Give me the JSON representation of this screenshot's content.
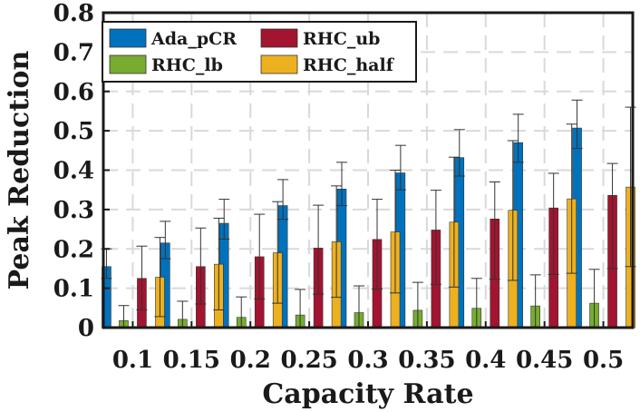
{
  "chart_data": {
    "type": "bar",
    "title": "",
    "xlabel": "Capacity Rate",
    "ylabel": "Peak Reduction",
    "ylim": [
      0,
      0.8
    ],
    "yticks": [
      "0",
      "0.1",
      "0.2",
      "0.3",
      "0.4",
      "0.5",
      "0.6",
      "0.7",
      "0.8"
    ],
    "categories": [
      "0.1",
      "0.15",
      "0.2",
      "0.25",
      "0.3",
      "0.35",
      "0.4",
      "0.45",
      "0.5"
    ],
    "grid": true,
    "legend_position": "top-left",
    "series": [
      {
        "name": "Ada_pCR",
        "color": "#0072BD",
        "values": [
          0.155,
          0.215,
          0.265,
          0.31,
          0.352,
          0.393,
          0.432,
          0.47,
          0.507
        ],
        "err_low": [
          0.125,
          0.175,
          0.225,
          0.275,
          0.31,
          0.35,
          0.385,
          0.42,
          0.455
        ],
        "err_high": [
          0.2,
          0.27,
          0.326,
          0.376,
          0.42,
          0.463,
          0.503,
          0.542,
          0.578
        ]
      },
      {
        "name": "RHC_lb",
        "color": "#77AC30",
        "values": [
          0.018,
          0.021,
          0.026,
          0.032,
          0.038,
          0.044,
          0.049,
          0.055,
          0.062
        ],
        "err_low": [
          0,
          0,
          0,
          0,
          0,
          0,
          0,
          0,
          0
        ],
        "err_high": [
          0.056,
          0.067,
          0.078,
          0.097,
          0.106,
          0.115,
          0.125,
          0.134,
          0.148
        ]
      },
      {
        "name": "RHC_ub",
        "color": "#A2142F",
        "values": [
          0.125,
          0.155,
          0.18,
          0.202,
          0.224,
          0.248,
          0.276,
          0.304,
          0.336
        ],
        "err_low": [
          0.045,
          0.06,
          0.073,
          0.085,
          0.098,
          0.11,
          0.123,
          0.135,
          0.15
        ],
        "err_high": [
          0.207,
          0.253,
          0.288,
          0.311,
          0.326,
          0.349,
          0.37,
          0.392,
          0.417
        ]
      },
      {
        "name": "RHC_half",
        "color": "#EDB120",
        "values": [
          0.128,
          0.161,
          0.19,
          0.218,
          0.243,
          0.268,
          0.298,
          0.327,
          0.357
        ],
        "err_low": [
          0.028,
          0.045,
          0.062,
          0.077,
          0.088,
          0.103,
          0.12,
          0.138,
          0.155
        ],
        "err_high": [
          0.229,
          0.278,
          0.32,
          0.36,
          0.4,
          0.433,
          0.475,
          0.517,
          0.56
        ]
      }
    ]
  }
}
